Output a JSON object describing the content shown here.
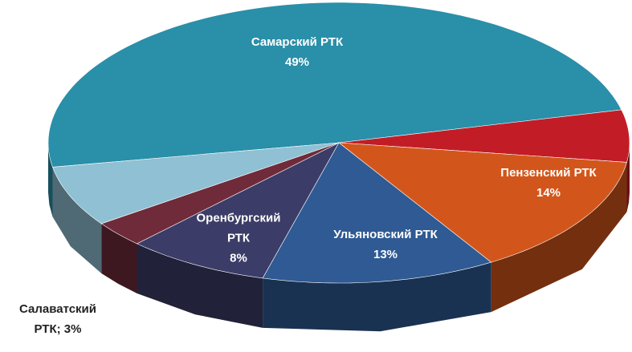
{
  "chart_data": {
    "type": "pie3d",
    "categories": [
      "Самарский РТК",
      null,
      "Пензенский РТК",
      "Ульяновский РТК",
      "Оренбургский РТК",
      "Салаватский РТК",
      null
    ],
    "values": [
      49,
      6,
      14,
      13,
      8,
      3,
      7
    ],
    "value_labels": [
      "49%",
      null,
      "14%",
      "13%",
      "8%",
      "3%",
      null
    ],
    "label_separator": "; ",
    "colors": [
      "#2a8fa8",
      "#c21d27",
      "#d2561b",
      "#2f5a93",
      "#3c3c68",
      "#6f2b3a",
      "#8fc0d3"
    ]
  }
}
